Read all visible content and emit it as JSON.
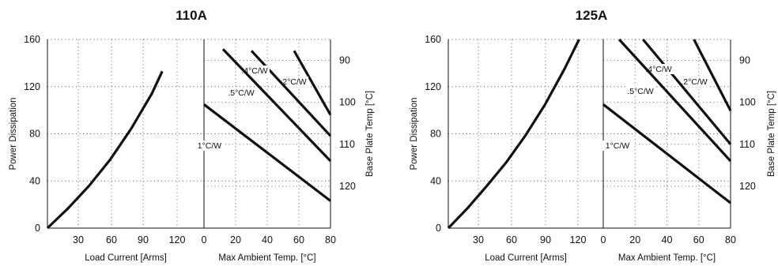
{
  "chart_data": [
    {
      "type": "line",
      "title": "110A",
      "load_panel": {
        "xlabel": "Load Current  [Arms]",
        "ylabel": "Power Dissipation",
        "xticks": [
          "30",
          "60",
          "90",
          "120"
        ],
        "yticks": [
          "0",
          "40",
          "80",
          "120",
          "160"
        ],
        "xlim": [
          0,
          150
        ],
        "ylim": [
          0,
          160
        ],
        "series": [
          {
            "x": [
              0,
              20,
              40,
              60,
              80,
              100,
              110
            ],
            "y": [
              0,
              17,
              36,
              58,
              84,
              114,
              133
            ]
          }
        ]
      },
      "ambient_panel": {
        "xlabel": "Max Ambient Temp. [°C]",
        "ylabel": "Base Plate Temp [°C]",
        "xticks": [
          "0",
          "40",
          "80",
          "20",
          "60"
        ],
        "y2ticks": [
          "90",
          "100",
          "110",
          "120"
        ],
        "xlim": [
          0,
          80
        ],
        "y2lim": [
          85,
          130
        ],
        "series": [
          {
            "name": ".2°C/W",
            "x": [
              57,
              80
            ],
            "y": [
              87.7,
              103
            ]
          },
          {
            "name": ".4°C/W",
            "x": [
              30,
              80
            ],
            "y": [
              87.7,
              108
            ]
          },
          {
            "name": ".5°C/W",
            "x": [
              12,
              80
            ],
            "y": [
              87.3,
              114
            ]
          },
          {
            "name": "1°C/W",
            "x": [
              0,
              80
            ],
            "y": [
              100.5,
              123.5
            ]
          }
        ]
      }
    },
    {
      "type": "line",
      "title": "125A",
      "load_panel": {
        "xlabel": "Load Current  [Arms]",
        "ylabel": "Power Dissipation",
        "xticks": [
          "30",
          "60",
          "90",
          "120"
        ],
        "yticks": [
          "0",
          "40",
          "80",
          "120",
          "160"
        ],
        "xlim": [
          0,
          160
        ],
        "ylim": [
          0,
          160
        ],
        "series": [
          {
            "x": [
              0,
              20,
              40,
              60,
              80,
              100,
              120,
              135
            ],
            "y": [
              0,
              17,
              36,
              56,
              79,
              105,
              135,
              160
            ]
          }
        ]
      },
      "ambient_panel": {
        "xlabel": "Max Ambient Temp. [°C]",
        "ylabel": "Base Plate Temp [°C]",
        "xticks": [
          "0",
          "40",
          "80",
          "20",
          "60"
        ],
        "y2ticks": [
          "90",
          "100",
          "110",
          "120"
        ],
        "xlim": [
          0,
          80
        ],
        "y2lim": [
          85,
          130
        ],
        "series": [
          {
            "name": ".2°C/W",
            "x": [
              57,
              80
            ],
            "y": [
              85,
              102
            ]
          },
          {
            "name": ".4°C/W",
            "x": [
              25,
              80
            ],
            "y": [
              85,
              110
            ]
          },
          {
            "name": ".5°C/W",
            "x": [
              10,
              80
            ],
            "y": [
              85,
              114
            ]
          },
          {
            "name": "1°C/W",
            "x": [
              0,
              80
            ],
            "y": [
              100.5,
              124
            ]
          }
        ]
      }
    }
  ]
}
